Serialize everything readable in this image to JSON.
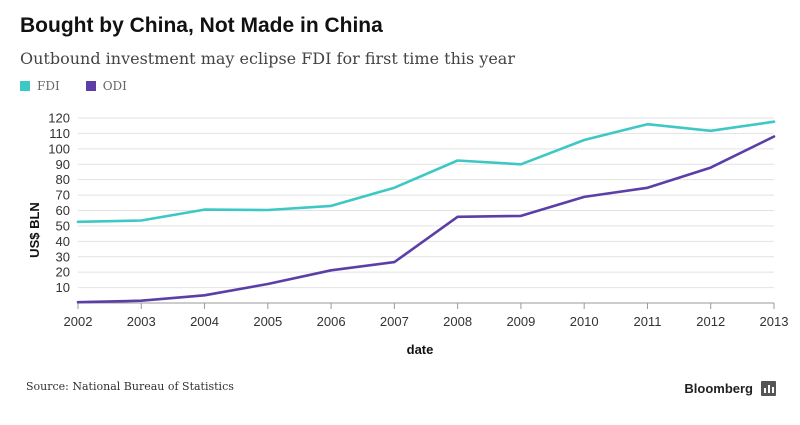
{
  "chart_data": {
    "type": "line",
    "title": "Bought by China, Not Made in China",
    "subtitle": "Outbound investment may eclipse FDI for first time this year",
    "xlabel": "date",
    "ylabel": "US$ BLN",
    "x": [
      "2002",
      "2003",
      "2004",
      "2005",
      "2006",
      "2007",
      "2008",
      "2009",
      "2010",
      "2011",
      "2012",
      "2013"
    ],
    "ylim": [
      0,
      120
    ],
    "yticks": [
      10,
      20,
      30,
      40,
      50,
      60,
      70,
      80,
      90,
      100,
      110,
      120
    ],
    "grid": true,
    "legend_position": "top-left",
    "series": [
      {
        "name": "FDI",
        "color": "#3ec8c5",
        "values": [
          52.7,
          53.5,
          60.6,
          60.3,
          63.0,
          74.8,
          92.4,
          90.0,
          105.7,
          116.0,
          111.7,
          117.6
        ]
      },
      {
        "name": "ODI",
        "color": "#5b3fa6",
        "values": [
          0.5,
          1.5,
          5.0,
          12.3,
          21.2,
          26.5,
          55.9,
          56.5,
          68.8,
          74.7,
          87.8,
          108.0
        ]
      }
    ],
    "source": "Source: National Bureau of Statistics"
  },
  "brand": {
    "name": "Bloomberg",
    "icon": "bar-chart-icon"
  }
}
